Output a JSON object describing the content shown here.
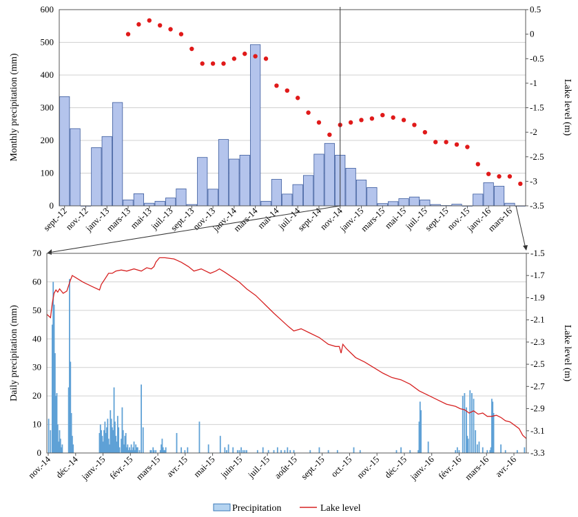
{
  "colors": {
    "bar_fill": "#b4c4ec",
    "bar_stroke": "#3a5a9c",
    "daily_bar": "#5fa1d6",
    "lake_dots": "#e01a1a",
    "lake_line": "#d62020",
    "grid": "#d0d0d0",
    "connector": "#333333"
  },
  "legend": {
    "precip_label": "Precipitation",
    "lake_label": "Lake level"
  },
  "chart_data": [
    {
      "type": "bar",
      "id": "monthly",
      "ylabel": "Monthly precipitation (mm)",
      "y2label": "Lake level (m)",
      "ylim": [
        0,
        600
      ],
      "y2lim": [
        -3.5,
        0.5
      ],
      "yticks": [
        0,
        100,
        200,
        300,
        400,
        500,
        600
      ],
      "y2ticks": [
        0.5,
        0,
        -0.5,
        -1,
        -1.5,
        -2,
        -2.5,
        -3,
        -3.5
      ],
      "y2tick_labels": [
        "0.5",
        "0",
        "-0.5",
        "-1",
        "-1.5",
        "-2",
        "-2.5",
        "-3",
        "-3.5"
      ],
      "grid": true,
      "categories": [
        "sept.-12",
        "oct.-12",
        "nov.-12",
        "déc.-12",
        "janv.-13",
        "févr.-13",
        "mars-13",
        "avr.-13",
        "mai-13",
        "juin-13",
        "juil.-13",
        "août-13",
        "sept.-13",
        "oct.-13",
        "nov.-13",
        "déc.-13",
        "janv.-14",
        "févr.-14",
        "mars-14",
        "avr.-14",
        "mai-14",
        "juin-14",
        "juil.-14",
        "août-14",
        "sept.-14",
        "oct.-14",
        "nov.-14",
        "déc.-14",
        "janv.-15",
        "févr.-15",
        "mars-15",
        "avr.-15",
        "mai-15",
        "juin-15",
        "juil.-15",
        "août-15",
        "sept.-15",
        "oct.-15",
        "nov.-15",
        "déc.-15",
        "janv.-16",
        "févr.-16",
        "mars-16",
        "avr.-16"
      ],
      "tick_labels": [
        "sept.-12",
        "nov.-12",
        "janv.-13",
        "mars-13",
        "mai-13",
        "juil.-13",
        "sept.-13",
        "nov.-13",
        "janv.-14",
        "mars-14",
        "mai-14",
        "juil.-14",
        "sept.-14",
        "nov.-14",
        "janv.-15",
        "mars-15",
        "mai-15",
        "juil.-15",
        "sept.-15",
        "nov.-15",
        "janv.-16",
        "mars-16"
      ],
      "series": [
        {
          "name": "Precipitation",
          "kind": "bar",
          "values": [
            334,
            236,
            0,
            178,
            212,
            316,
            18,
            37,
            8,
            14,
            24,
            52,
            4,
            148,
            51,
            203,
            143,
            155,
            493,
            14,
            81,
            36,
            65,
            93,
            158,
            191,
            155,
            115,
            79,
            56,
            7,
            13,
            22,
            27,
            18,
            4,
            1,
            5,
            0,
            36,
            71,
            60,
            8,
            0
          ]
        },
        {
          "name": "Lake level",
          "kind": "dots",
          "values": [
            null,
            null,
            null,
            null,
            null,
            null,
            0.0,
            0.2,
            0.28,
            0.18,
            0.1,
            0.0,
            -0.3,
            -0.6,
            -0.6,
            -0.6,
            -0.5,
            -0.4,
            -0.45,
            -0.5,
            -1.05,
            -1.15,
            -1.3,
            -1.6,
            -1.8,
            -2.05,
            -1.85,
            -1.8,
            -1.75,
            -1.72,
            -1.65,
            -1.7,
            -1.75,
            -1.85,
            -2.0,
            -2.2,
            -2.2,
            -2.25,
            -2.3,
            -2.65,
            -2.85,
            -2.9,
            -2.9,
            -3.05
          ]
        }
      ]
    },
    {
      "type": "bar",
      "id": "daily",
      "ylabel": "Daily precipitation (mm)",
      "y2label": "Lake level (m)",
      "ylim": [
        0,
        70
      ],
      "y2lim": [
        -3.3,
        -1.5
      ],
      "yticks": [
        0,
        10,
        20,
        30,
        40,
        50,
        60,
        70
      ],
      "y2ticks": [
        -1.5,
        -1.7,
        -1.9,
        -2.1,
        -2.3,
        -2.5,
        -2.7,
        -2.9,
        -3.1,
        -3.3
      ],
      "y2tick_labels": [
        "-1.5",
        "-1.7",
        "-1.9",
        "-2.1",
        "-2.3",
        "-2.5",
        "-2.7",
        "-2.9",
        "-3.1",
        "-3.3"
      ],
      "tick_labels": [
        "nov.-14",
        "déc.-14",
        "janv.-15",
        "févr.-15",
        "mars-15",
        "avr.-15",
        "mai-15",
        "juin-15",
        "juil.-15",
        "août-15",
        "sept.-15",
        "oct.-15",
        "nov.-15",
        "déc.-15",
        "janv.-16",
        "févr.-16",
        "mars-16",
        "avr.-16"
      ],
      "x_range_days": [
        0,
        528
      ],
      "series": [
        {
          "name": "Precipitation",
          "kind": "bar",
          "x_days": [
            2,
            4,
            6,
            7,
            8,
            9,
            10,
            11,
            12,
            13,
            14,
            15,
            16,
            17,
            24,
            25,
            26,
            27,
            28,
            29,
            58,
            59,
            60,
            61,
            62,
            63,
            64,
            65,
            66,
            67,
            68,
            69,
            70,
            71,
            72,
            73,
            74,
            75,
            76,
            77,
            78,
            79,
            80,
            82,
            83,
            84,
            85,
            86,
            87,
            88,
            89,
            90,
            91,
            92,
            93,
            94,
            95,
            96,
            97,
            98,
            99,
            100,
            102,
            104,
            106,
            114,
            115,
            117,
            118,
            120,
            125,
            126,
            127,
            128,
            129,
            130,
            131,
            143,
            148,
            152,
            155,
            168,
            178,
            191,
            196,
            198,
            200,
            205,
            210,
            212,
            214,
            216,
            218,
            220,
            232,
            238,
            244,
            250,
            254,
            258,
            262,
            265,
            268,
            272,
            290,
            300,
            310,
            320,
            338,
            345,
            385,
            390,
            400,
            409,
            410,
            411,
            412,
            420,
            450,
            452,
            454,
            458,
            460,
            462,
            463,
            464,
            466,
            468,
            470,
            472,
            474,
            476,
            480,
            485,
            488,
            489,
            490,
            491,
            492,
            500,
            505,
            518,
            526
          ],
          "values": [
            12,
            8,
            45,
            60,
            52,
            35,
            20,
            21,
            10,
            4,
            8,
            5,
            2,
            3,
            23,
            61,
            32,
            14,
            6,
            3,
            7,
            10,
            8,
            6,
            4,
            8,
            11,
            7,
            9,
            12,
            5,
            3,
            15,
            12,
            9,
            8,
            23,
            11,
            6,
            4,
            13,
            9,
            2,
            5,
            16,
            8,
            3,
            6,
            7,
            2,
            3,
            1,
            2,
            1,
            3,
            1,
            2,
            4,
            1,
            3,
            2,
            2,
            1,
            24,
            9,
            1,
            1,
            2,
            1,
            1,
            1,
            3,
            5,
            2,
            1,
            1,
            2,
            7,
            2,
            1,
            2,
            11,
            3,
            6,
            2,
            1,
            3,
            2,
            1,
            1,
            2,
            1,
            1,
            1,
            1,
            2,
            1,
            1,
            2,
            1,
            1,
            2,
            1,
            1,
            1,
            2,
            1,
            1,
            2,
            1,
            1,
            2,
            1,
            1,
            11,
            18,
            15,
            4,
            1,
            2,
            1,
            20,
            21,
            16,
            6,
            5,
            22,
            21,
            19,
            8,
            3,
            4,
            2,
            1,
            1,
            2,
            19,
            18,
            14,
            3,
            1,
            1,
            2
          ]
        },
        {
          "name": "Lake level",
          "kind": "line",
          "x_days": [
            0,
            4,
            6,
            8,
            10,
            12,
            14,
            18,
            22,
            26,
            28,
            32,
            40,
            50,
            58,
            60,
            64,
            68,
            72,
            76,
            82,
            88,
            96,
            104,
            110,
            115,
            118,
            120,
            124,
            130,
            140,
            148,
            156,
            162,
            170,
            175,
            180,
            186,
            190,
            196,
            205,
            212,
            220,
            230,
            240,
            250,
            258,
            266,
            272,
            280,
            290,
            300,
            310,
            318,
            322,
            324,
            326,
            330,
            335,
            340,
            350,
            360,
            370,
            380,
            390,
            400,
            410,
            420,
            430,
            440,
            450,
            455,
            460,
            465,
            470,
            475,
            480,
            485,
            490,
            495,
            500,
            505,
            510,
            515,
            520,
            524,
            528
          ],
          "values": [
            -2.05,
            -2.08,
            -1.95,
            -1.86,
            -1.83,
            -1.85,
            -1.82,
            -1.86,
            -1.84,
            -1.74,
            -1.7,
            -1.72,
            -1.76,
            -1.8,
            -1.83,
            -1.78,
            -1.73,
            -1.68,
            -1.68,
            -1.66,
            -1.65,
            -1.66,
            -1.64,
            -1.66,
            -1.63,
            -1.64,
            -1.62,
            -1.58,
            -1.54,
            -1.54,
            -1.55,
            -1.58,
            -1.62,
            -1.66,
            -1.64,
            -1.66,
            -1.68,
            -1.66,
            -1.64,
            -1.67,
            -1.72,
            -1.76,
            -1.82,
            -1.88,
            -1.96,
            -2.04,
            -2.1,
            -2.16,
            -2.2,
            -2.18,
            -2.22,
            -2.26,
            -2.32,
            -2.34,
            -2.34,
            -2.4,
            -2.32,
            -2.36,
            -2.4,
            -2.44,
            -2.48,
            -2.53,
            -2.58,
            -2.62,
            -2.64,
            -2.68,
            -2.74,
            -2.78,
            -2.82,
            -2.86,
            -2.88,
            -2.9,
            -2.91,
            -2.94,
            -2.92,
            -2.95,
            -2.94,
            -2.97,
            -2.97,
            -2.96,
            -2.98,
            -3.01,
            -3.02,
            -3.05,
            -3.08,
            -3.14,
            -3.17
          ]
        }
      ]
    }
  ]
}
